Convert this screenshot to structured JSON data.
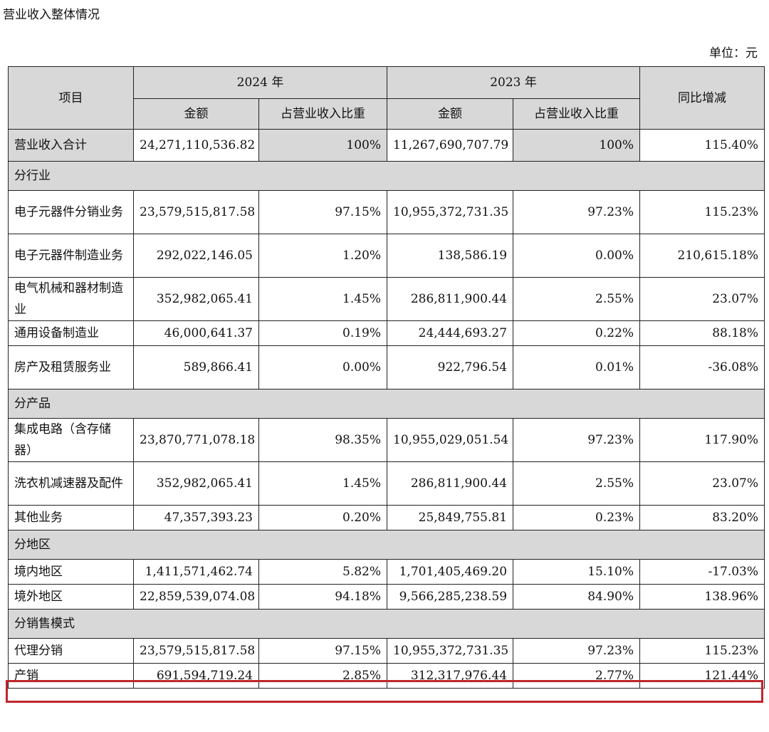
{
  "title": "营业收入整体情况",
  "unit": "单位：元",
  "header": {
    "item": "项目",
    "y2024": "2024 年",
    "y2023": "2023 年",
    "amount": "金额",
    "ratio": "占营业收入比重",
    "yoy": "同比增减"
  },
  "rows": [
    {
      "label": "营业收入合计",
      "a24": "24,271,110,536.82",
      "r24": "100%",
      "a23": "11,267,690,707.79",
      "r23": "100%",
      "yoy": "115.40%"
    },
    {
      "section": "分行业"
    },
    {
      "label": "电子元器件分销业务",
      "a24": "23,579,515,817.58",
      "r24": "97.15%",
      "a23": "10,955,372,731.35",
      "r23": "97.23%",
      "yoy": "115.23%"
    },
    {
      "label": "电子元器件制造业务",
      "a24": "292,022,146.05",
      "r24": "1.20%",
      "a23": "138,586.19",
      "r23": "0.00%",
      "yoy": "210,615.18%"
    },
    {
      "label": "电气机械和器材制造业",
      "a24": "352,982,065.41",
      "r24": "1.45%",
      "a23": "286,811,900.44",
      "r23": "2.55%",
      "yoy": "23.07%"
    },
    {
      "label": "通用设备制造业",
      "a24": "46,000,641.37",
      "r24": "0.19%",
      "a23": "24,444,693.27",
      "r23": "0.22%",
      "yoy": "88.18%"
    },
    {
      "label": "房产及租赁服务业",
      "a24": "589,866.41",
      "r24": "0.00%",
      "a23": "922,796.54",
      "r23": "0.01%",
      "yoy": "-36.08%"
    },
    {
      "section": "分产品"
    },
    {
      "label": "集成电路（含存储器）",
      "a24": "23,870,771,078.18",
      "r24": "98.35%",
      "a23": "10,955,029,051.54",
      "r23": "97.23%",
      "yoy": "117.90%"
    },
    {
      "label": "洗衣机减速器及配件",
      "a24": "352,982,065.41",
      "r24": "1.45%",
      "a23": "286,811,900.44",
      "r23": "2.55%",
      "yoy": "23.07%"
    },
    {
      "label": "其他业务",
      "a24": "47,357,393.23",
      "r24": "0.20%",
      "a23": "25,849,755.81",
      "r23": "0.23%",
      "yoy": "83.20%"
    },
    {
      "section": "分地区"
    },
    {
      "label": "境内地区",
      "a24": "1,411,571,462.74",
      "r24": "5.82%",
      "a23": "1,701,405,469.20",
      "r23": "15.10%",
      "yoy": "-17.03%"
    },
    {
      "label": "境外地区",
      "a24": "22,859,539,074.08",
      "r24": "94.18%",
      "a23": "9,566,285,238.59",
      "r23": "84.90%",
      "yoy": "138.96%"
    },
    {
      "section": "分销售模式"
    },
    {
      "label": "代理分销",
      "a24": "23,579,515,817.58",
      "r24": "97.15%",
      "a23": "10,955,372,731.35",
      "r23": "97.23%",
      "yoy": "115.23%"
    },
    {
      "label": "产销",
      "a24": "691,594,719.24",
      "r24": "2.85%",
      "a23": "312,317,976.44",
      "r23": "2.77%",
      "yoy": "121.44%"
    }
  ],
  "highlight_color": "#c0262b"
}
